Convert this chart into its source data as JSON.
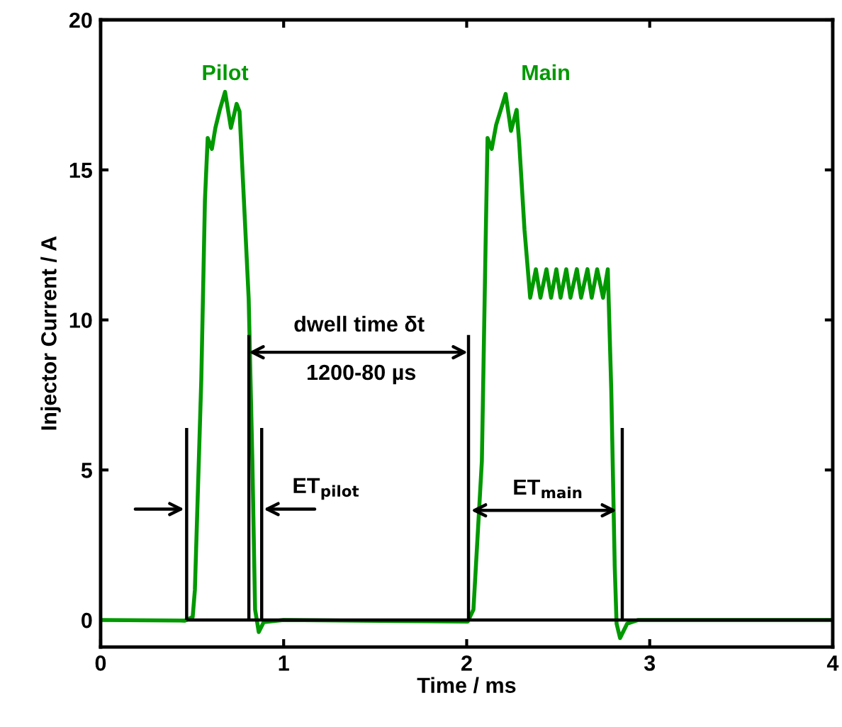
{
  "chart_data": {
    "type": "line",
    "xlabel": "Time / ms",
    "ylabel": "Injector Current / A",
    "xlim": [
      0,
      4
    ],
    "xticks": [
      0,
      1,
      2,
      3,
      4
    ],
    "ylim": [
      -0.9,
      20
    ],
    "yticks": [
      0,
      5,
      10,
      15,
      20
    ],
    "grid": false,
    "legend": false,
    "series": [
      {
        "color": "#009900",
        "x": [
          0,
          0.46,
          0.503,
          0.515,
          0.55,
          0.57,
          0.585,
          0.608,
          0.627,
          0.651,
          0.68,
          0.712,
          0.743,
          0.759,
          0.786,
          0.809,
          0.829,
          0.844,
          0.864,
          0.891,
          1.0,
          2.006,
          2.037,
          2.083,
          2.103,
          2.114,
          2.137,
          2.161,
          2.213,
          2.242,
          2.273,
          2.287,
          2.316,
          2.347,
          2.378,
          2.403,
          2.436,
          2.461,
          2.49,
          2.513,
          2.544,
          2.567,
          2.602,
          2.625,
          2.66,
          2.683,
          2.713,
          2.745,
          2.771,
          2.79,
          2.809,
          2.819,
          2.838,
          2.877,
          2.935,
          4.0
        ],
        "values": [
          0,
          -0.02,
          0.1,
          1.0,
          8.0,
          14.0,
          16.06,
          15.7,
          16.4,
          17.0,
          17.6,
          16.4,
          17.2,
          16.95,
          13.6,
          10.7,
          5.3,
          0.35,
          -0.4,
          -0.07,
          0,
          -0.05,
          0.35,
          5.3,
          12.4,
          16.06,
          15.7,
          16.5,
          17.53,
          16.3,
          17.0,
          15.9,
          13.0,
          10.74,
          11.69,
          10.74,
          11.69,
          10.74,
          11.69,
          10.74,
          11.69,
          10.74,
          11.69,
          10.74,
          11.69,
          10.74,
          11.69,
          10.74,
          11.69,
          7.67,
          1.77,
          -0.12,
          -0.6,
          -0.12,
          0,
          0
        ]
      },
      {
        "color": "#000000",
        "x": [
          0.47,
          4.0
        ],
        "values": [
          0,
          0
        ]
      },
      {
        "color": "#000000",
        "x": [
          0.47,
          0.47
        ],
        "values": [
          0,
          6.4
        ]
      },
      {
        "color": "#000000",
        "x": [
          0.81,
          0.81
        ],
        "values": [
          0,
          9.5
        ]
      },
      {
        "color": "#000000",
        "x": [
          0.88,
          0.88
        ],
        "values": [
          0,
          6.4
        ]
      },
      {
        "color": "#000000",
        "x": [
          2.01,
          2.01
        ],
        "values": [
          0,
          9.5
        ]
      },
      {
        "color": "#000000",
        "x": [
          2.85,
          2.85
        ],
        "values": [
          0,
          6.4
        ]
      }
    ],
    "annotations": [
      "Pilot",
      "Main",
      "dwell time δt",
      "1200-80 µs",
      "ET$_{pilot}$",
      "ET$_{main}$"
    ]
  }
}
